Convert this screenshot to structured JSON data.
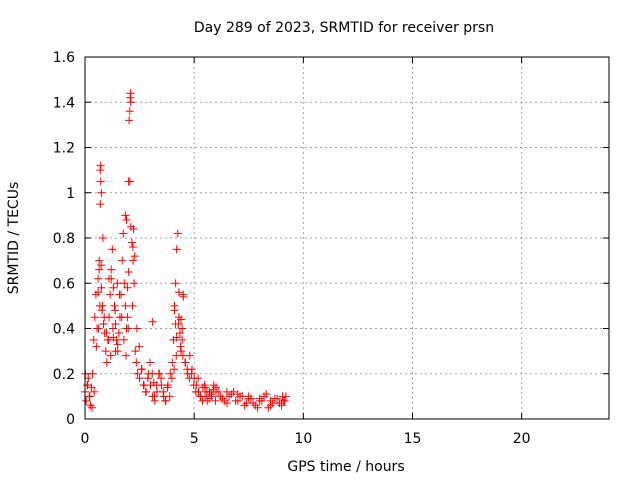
{
  "chart_data": {
    "type": "scatter",
    "title": "Day 289 of 2023, SRMTID for receiver prsn",
    "xlabel": "GPS time / hours",
    "ylabel": "SRMTID / TECUs",
    "xlim": [
      0,
      24
    ],
    "ylim": [
      0,
      1.6
    ],
    "xticks": [
      0,
      5,
      10,
      15,
      20
    ],
    "xtick_labels": [
      "0",
      "5",
      "10",
      "15",
      "20"
    ],
    "yticks": [
      0,
      0.2,
      0.4,
      0.6,
      0.8,
      1.0,
      1.2,
      1.4,
      1.6
    ],
    "ytick_labels": [
      "0",
      "0.2",
      "0.4",
      "0.6",
      "0.8",
      "1",
      "1.2",
      "1.4",
      "1.6"
    ],
    "grid": true,
    "marker": "+",
    "color": "#ff0000",
    "series": [
      {
        "name": "prsn",
        "x": [
          0.0,
          0.05,
          0.1,
          0.15,
          0.2,
          0.25,
          0.3,
          0.35,
          0.4,
          0.45,
          0.5,
          0.55,
          0.6,
          0.65,
          0.7,
          0.72,
          0.75,
          0.78,
          0.8,
          0.85,
          0.9,
          0.95,
          1.0,
          1.05,
          1.1,
          1.15,
          1.2,
          1.25,
          1.3,
          1.35,
          1.4,
          1.45,
          1.5,
          1.55,
          1.6,
          1.65,
          1.7,
          1.75,
          1.8,
          1.85,
          1.9,
          1.95,
          2.0,
          2.02,
          2.05,
          2.08,
          2.1,
          2.15,
          2.2,
          2.25,
          2.3,
          2.35,
          2.4,
          2.5,
          2.6,
          2.7,
          2.8,
          2.9,
          3.0,
          3.1,
          3.2,
          3.3,
          3.4,
          3.5,
          3.6,
          3.7,
          3.8,
          3.9,
          4.0,
          4.05,
          4.1,
          4.15,
          4.2,
          4.25,
          4.3,
          4.35,
          4.4,
          4.45,
          4.5,
          4.6,
          4.7,
          4.8,
          4.9,
          5.0,
          5.1,
          5.2,
          5.3,
          5.4,
          5.5,
          5.6,
          5.7,
          5.8,
          5.9,
          6.0,
          6.2,
          6.4,
          6.6,
          6.8,
          7.0,
          7.2,
          7.4,
          7.6,
          7.8,
          8.0,
          8.2,
          8.4,
          8.6,
          8.8,
          9.0,
          9.1,
          9.2,
          0.02,
          0.12,
          0.22,
          0.32,
          0.42,
          0.52,
          0.62,
          0.68,
          0.74,
          0.82,
          0.88,
          0.98,
          1.08,
          1.18,
          1.28,
          1.38,
          1.48,
          1.58,
          1.68,
          1.78,
          1.88,
          1.98,
          2.18,
          2.28,
          2.38,
          2.48,
          2.58,
          2.68,
          2.78,
          2.88,
          2.98,
          3.08,
          3.18,
          3.28,
          3.38,
          3.48,
          3.58,
          3.68,
          3.78,
          3.88,
          3.98,
          4.08,
          4.18,
          4.28,
          4.38,
          4.48,
          4.58,
          4.68,
          4.78,
          4.88,
          4.98,
          5.08,
          5.18,
          5.28,
          5.38,
          5.48,
          5.58,
          5.68,
          5.78,
          5.88,
          5.98,
          6.1,
          6.3,
          6.5,
          6.7,
          6.9,
          7.1,
          7.3,
          7.5,
          7.7,
          7.9,
          8.1,
          8.3,
          8.5,
          8.7,
          8.9,
          9.05,
          9.15,
          0.6,
          0.65,
          0.7,
          0.72,
          0.75,
          1.85,
          1.9,
          1.95,
          2.0,
          2.05,
          2.07,
          2.1,
          4.1,
          4.15,
          4.2,
          4.3,
          4.4,
          4.45,
          4.5,
          1.1,
          1.2,
          1.3,
          1.4,
          1.5,
          2.2,
          2.22,
          3.1,
          3.15,
          5.5,
          6.0,
          6.5,
          7.0,
          7.5,
          8.0,
          8.5,
          9.0
        ],
        "y": [
          0.12,
          0.08,
          0.15,
          0.18,
          0.1,
          0.06,
          0.14,
          0.2,
          0.35,
          0.45,
          0.55,
          0.4,
          0.62,
          0.7,
          0.95,
          1.05,
          0.58,
          0.48,
          0.5,
          0.42,
          0.38,
          0.3,
          0.25,
          0.35,
          0.45,
          0.55,
          0.62,
          0.75,
          0.58,
          0.5,
          0.42,
          0.35,
          0.3,
          0.38,
          0.45,
          0.55,
          0.7,
          0.82,
          0.6,
          0.5,
          0.4,
          0.45,
          1.05,
          1.32,
          1.36,
          1.44,
          0.85,
          0.78,
          0.7,
          0.6,
          0.3,
          0.25,
          0.2,
          0.18,
          0.22,
          0.15,
          0.12,
          0.2,
          0.15,
          0.1,
          0.08,
          0.12,
          0.2,
          0.15,
          0.1,
          0.08,
          0.15,
          0.2,
          0.25,
          0.35,
          0.48,
          0.6,
          0.75,
          0.82,
          0.45,
          0.38,
          0.3,
          0.4,
          0.55,
          0.25,
          0.2,
          0.28,
          0.22,
          0.18,
          0.15,
          0.12,
          0.1,
          0.14,
          0.1,
          0.08,
          0.12,
          0.1,
          0.15,
          0.12,
          0.1,
          0.08,
          0.1,
          0.12,
          0.08,
          0.1,
          0.07,
          0.09,
          0.06,
          0.08,
          0.1,
          0.05,
          0.07,
          0.09,
          0.06,
          0.08,
          0.1,
          0.2,
          0.15,
          0.1,
          0.05,
          0.12,
          0.32,
          0.4,
          0.5,
          0.68,
          0.8,
          0.45,
          0.38,
          0.35,
          0.28,
          0.4,
          0.48,
          0.6,
          0.55,
          0.45,
          0.35,
          0.28,
          0.4,
          0.5,
          0.72,
          0.4,
          0.32,
          0.22,
          0.15,
          0.12,
          0.18,
          0.25,
          0.2,
          0.1,
          0.15,
          0.2,
          0.18,
          0.12,
          0.08,
          0.14,
          0.1,
          0.18,
          0.22,
          0.28,
          0.42,
          0.32,
          0.28,
          0.25,
          0.22,
          0.18,
          0.2,
          0.15,
          0.12,
          0.18,
          0.1,
          0.08,
          0.15,
          0.12,
          0.09,
          0.11,
          0.13,
          0.08,
          0.12,
          0.09,
          0.07,
          0.11,
          0.08,
          0.1,
          0.06,
          0.09,
          0.07,
          0.05,
          0.08,
          0.11,
          0.06,
          0.09,
          0.07,
          0.1,
          0.08,
          0.56,
          0.66,
          1.1,
          1.12,
          1.0,
          0.9,
          0.88,
          0.58,
          0.65,
          1.05,
          1.42,
          1.4,
          0.5,
          0.42,
          0.36,
          0.56,
          0.44,
          0.35,
          0.54,
          0.62,
          0.66,
          0.36,
          0.3,
          0.33,
          0.76,
          0.84,
          0.43,
          0.16,
          0.14,
          0.14,
          0.12,
          0.11,
          0.1,
          0.09,
          0.08,
          0.07
        ]
      }
    ]
  }
}
